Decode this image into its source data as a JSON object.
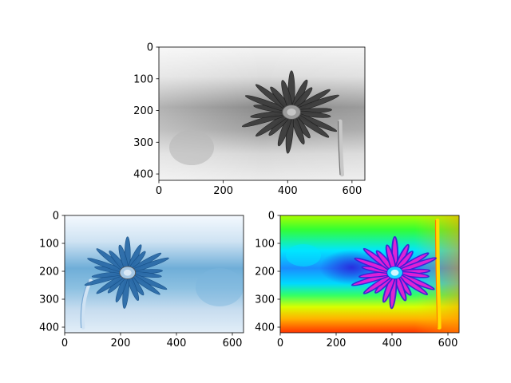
{
  "chart_data": [
    {
      "type": "heatmap",
      "id": "top",
      "colormap": "gray_r",
      "image_extent": {
        "x": [
          0,
          640
        ],
        "y": [
          0,
          420
        ]
      },
      "xlim": [
        0,
        640
      ],
      "ylim": [
        420,
        0
      ],
      "x_ticks": [
        0,
        200,
        400,
        600
      ],
      "y_ticks": [
        0,
        100,
        200,
        300,
        400
      ],
      "x_tick_labels": [
        "0",
        "200",
        "400",
        "600"
      ],
      "y_tick_labels": [
        "0",
        "100",
        "200",
        "300",
        "400"
      ],
      "flower_center": [
        412,
        205
      ],
      "stem_x": 545,
      "colors": {
        "background": "#f2f2f2",
        "band": "#7a7a7a",
        "petal": "#3c3c3c",
        "center": "#9a9a9a"
      }
    },
    {
      "type": "heatmap",
      "id": "bottom-left",
      "colormap": "Blues",
      "image_extent": {
        "x": [
          0,
          640
        ],
        "y": [
          0,
          420
        ]
      },
      "xlim": [
        0,
        640
      ],
      "ylim": [
        420,
        0
      ],
      "x_ticks": [
        0,
        200,
        400,
        600
      ],
      "y_ticks": [
        0,
        100,
        200,
        300,
        400
      ],
      "x_tick_labels": [
        "0",
        "200",
        "400",
        "600"
      ],
      "y_tick_labels": [
        "0",
        "100",
        "200",
        "300",
        "400"
      ],
      "flower_center": [
        225,
        205
      ],
      "stem_x": 90,
      "colors": {
        "background": "#eaf3fb",
        "band": "#6aaed6",
        "petal": "#2b6ba8",
        "center": "#a6c8e4"
      }
    },
    {
      "type": "heatmap",
      "id": "bottom-right",
      "colormap": "hsv",
      "image_extent": {
        "x": [
          0,
          640
        ],
        "y": [
          0,
          420
        ]
      },
      "xlim": [
        0,
        640
      ],
      "ylim": [
        420,
        0
      ],
      "x_ticks": [
        0,
        200,
        400,
        600
      ],
      "y_ticks": [
        0,
        100,
        200,
        300,
        400
      ],
      "x_tick_labels": [
        "0",
        "200",
        "400",
        "600"
      ],
      "y_tick_labels": [
        "0",
        "100",
        "200",
        "300",
        "400"
      ],
      "flower_center": [
        410,
        205
      ],
      "stem_x": 545,
      "colors": {
        "petal": "#e81bd6",
        "petal_edge": "#3b1fd6",
        "center": "#1ad0ff"
      }
    }
  ]
}
